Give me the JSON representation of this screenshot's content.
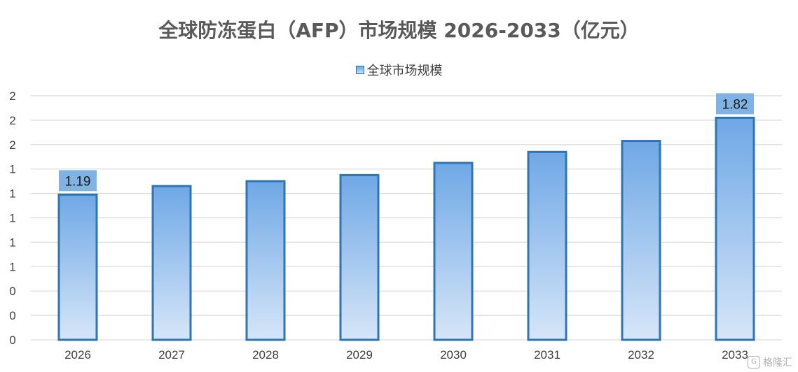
{
  "chart_data": {
    "type": "bar",
    "title": "全球防冻蛋白（AFP）市场规模 2026-2033（亿元）",
    "categories": [
      "2026",
      "2027",
      "2028",
      "2029",
      "2030",
      "2031",
      "2032",
      "2033"
    ],
    "series": [
      {
        "name": "全球市场规模",
        "values": [
          1.19,
          1.26,
          1.3,
          1.35,
          1.45,
          1.54,
          1.63,
          1.82
        ]
      }
    ],
    "data_labels": [
      {
        "index": 0,
        "text": "1.19"
      },
      {
        "index": 7,
        "text": "1.82"
      }
    ],
    "y_tick_labels": [
      "0",
      "0",
      "0",
      "1",
      "1",
      "1",
      "1",
      "1",
      "2",
      "2",
      "2"
    ],
    "ylim": [
      0,
      2.0
    ],
    "xlabel": "",
    "ylabel": "",
    "grid": true,
    "legend_position": "top",
    "colors": {
      "bar_top": "#6fa8e6",
      "bar_bottom": "#d6e6f8",
      "bar_border": "#2e75b6",
      "label_bg": "#7fb3e3",
      "grid": "#d9d9d9"
    }
  },
  "watermark": {
    "icon": "gelonghui-logo-icon",
    "text": "格隆汇"
  }
}
